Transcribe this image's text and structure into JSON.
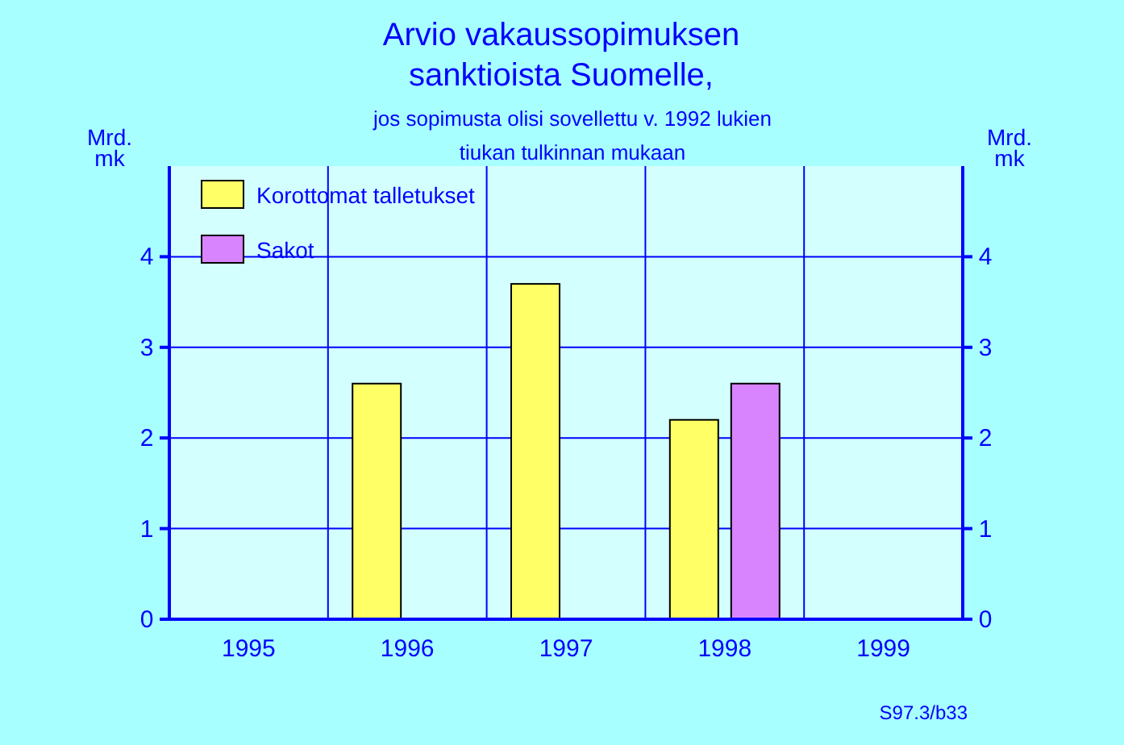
{
  "chart_data": {
    "type": "bar",
    "title": "Arvio  vakaussopimuksen\nsanktioista  Suomelle,",
    "subtitle": "jos sopimusta olisi sovellettu v. 1992 lukien\ntiukan tulkinnan mukaan",
    "ylabel": "Mrd.\nmk",
    "y2label": "Mrd.\nmk",
    "categories": [
      "1995",
      "1996",
      "1997",
      "1998",
      "1999"
    ],
    "series": [
      {
        "name": "Korottomat talletukset",
        "color": "#ffff66",
        "values": [
          null,
          2.6,
          3.7,
          2.2,
          null
        ]
      },
      {
        "name": "Sakot",
        "color": "#d884ff",
        "values": [
          null,
          null,
          null,
          2.6,
          null
        ]
      }
    ],
    "ylim": [
      0,
      5
    ],
    "yticks": [
      0,
      1,
      2,
      3,
      4
    ],
    "y2lim": [
      0,
      5
    ],
    "y2ticks": [
      0,
      1,
      2,
      3,
      4
    ],
    "grid": true,
    "legend": "top left",
    "annotations": [
      "S97.3/b33"
    ]
  }
}
